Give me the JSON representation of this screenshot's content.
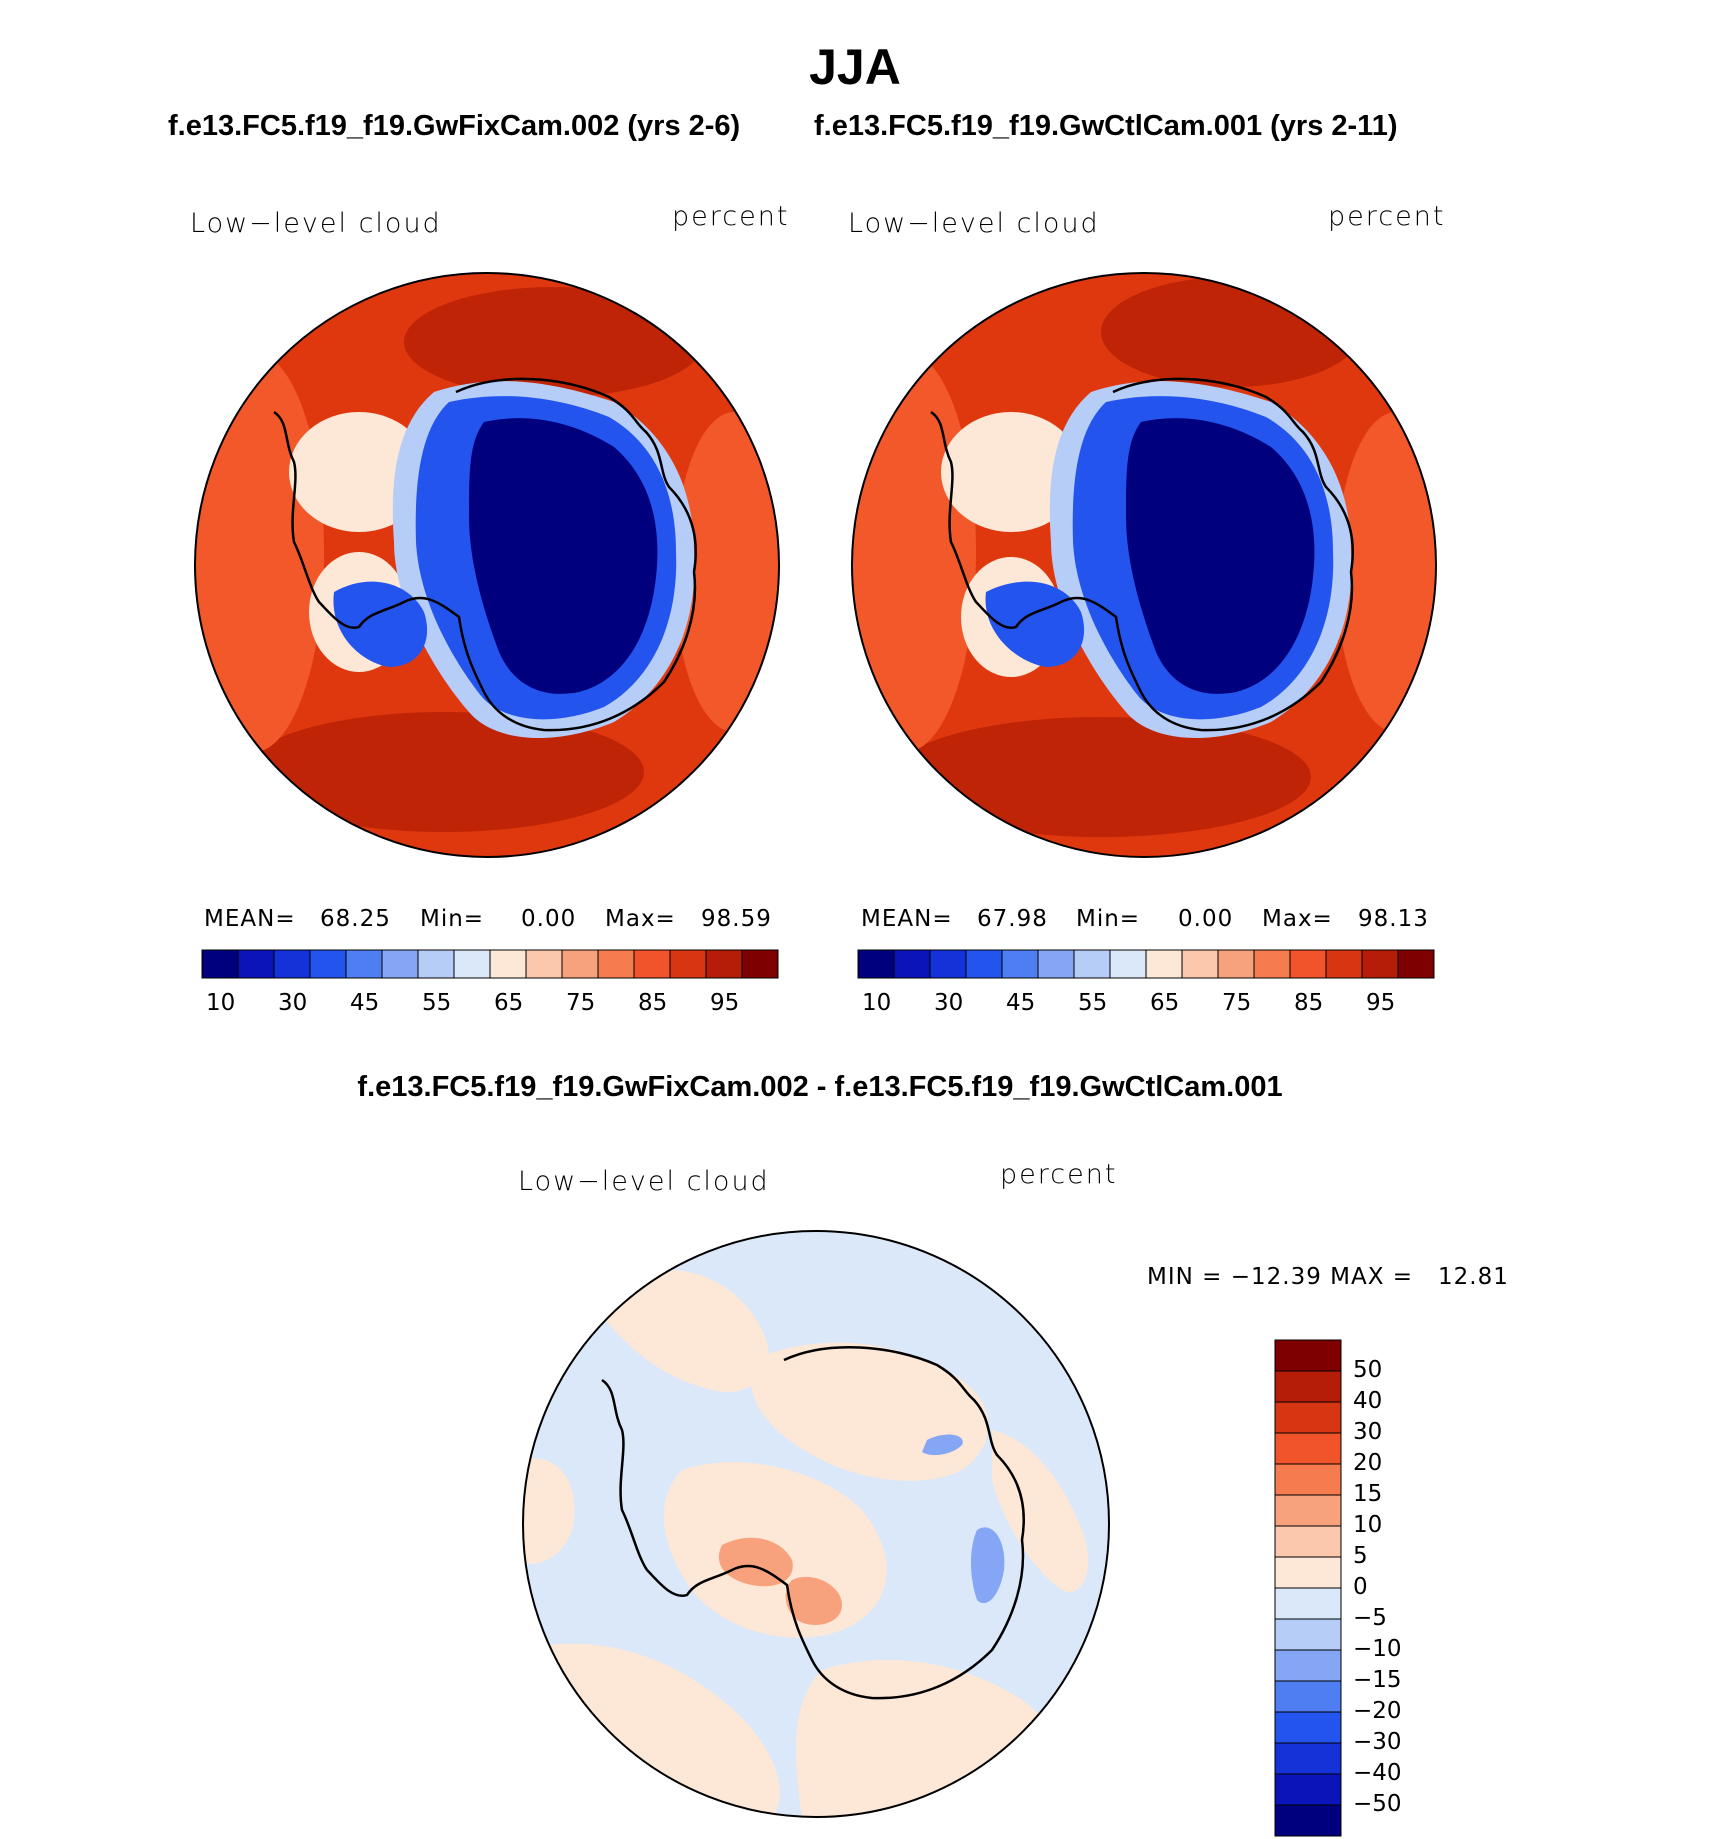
{
  "title": "JJA",
  "case1": {
    "name": "f.e13.FC5.f19_f19.GwFixCam.002 (yrs 2-6)"
  },
  "case2": {
    "name": "f.e13.FC5.f19_f19.GwCtlCam.001 (yrs 2-11)"
  },
  "diff_title": "f.e13.FC5.f19_f19.GwFixCam.002 - f.e13.FC5.f19_f19.GwCtlCam.001",
  "panels": [
    {
      "variable": "Low−level cloud",
      "units": "percent",
      "mean_label": "MEAN=",
      "mean_value": "68.25",
      "min_label": "Min=",
      "min_value": "0.00",
      "max_label": "Max=",
      "max_value": "98.59"
    },
    {
      "variable": "Low−level cloud",
      "units": "percent",
      "mean_label": "MEAN=",
      "mean_value": "67.98",
      "min_label": "Min=",
      "min_value": "0.00",
      "max_label": "Max=",
      "max_value": "98.13"
    }
  ],
  "diff_panel": {
    "variable": "Low−level cloud",
    "units": "percent",
    "minmax": "MIN = −12.39 MAX =   12.81"
  },
  "colorbar_abs": {
    "ticks": [
      "10",
      "30",
      "45",
      "55",
      "65",
      "75",
      "85",
      "95"
    ],
    "colors": [
      "#00007f",
      "#0a14b8",
      "#1432d8",
      "#2454ee",
      "#4f7df2",
      "#85a6f5",
      "#b5cdf7",
      "#dbe8fa",
      "#fde7d6",
      "#fbc8ad",
      "#f8a27d",
      "#f67b4e",
      "#f1532a",
      "#d83512",
      "#b51d08",
      "#7f0000"
    ]
  },
  "colorbar_diff": {
    "ticks": [
      "50",
      "40",
      "30",
      "20",
      "15",
      "10",
      "5",
      "0",
      "−5",
      "−10",
      "−15",
      "−20",
      "−30",
      "−40",
      "−50"
    ],
    "colors": [
      "#7f0000",
      "#b51d08",
      "#d83512",
      "#f1532a",
      "#f67b4e",
      "#f8a27d",
      "#fbc8ad",
      "#fde7d6",
      "#dbe8fa",
      "#b5cdf7",
      "#85a6f5",
      "#4f7df2",
      "#2454ee",
      "#1432d8",
      "#0a14b8",
      "#00007f"
    ]
  },
  "colors": {
    "ocean_abs": "#e0380e",
    "ocean_abs_dark": "#bf2406",
    "ocean_abs_light": "#f2582a",
    "antarctic_core": "#00007f",
    "antarctic_mid": "#2454ee",
    "antarctic_edge": "#b5cdf7",
    "diff_pos": "#fde7d6",
    "diff_neg": "#dbe8fa",
    "diff_pos_strong": "#f8a27d",
    "diff_neg_strong": "#85a6f5"
  }
}
